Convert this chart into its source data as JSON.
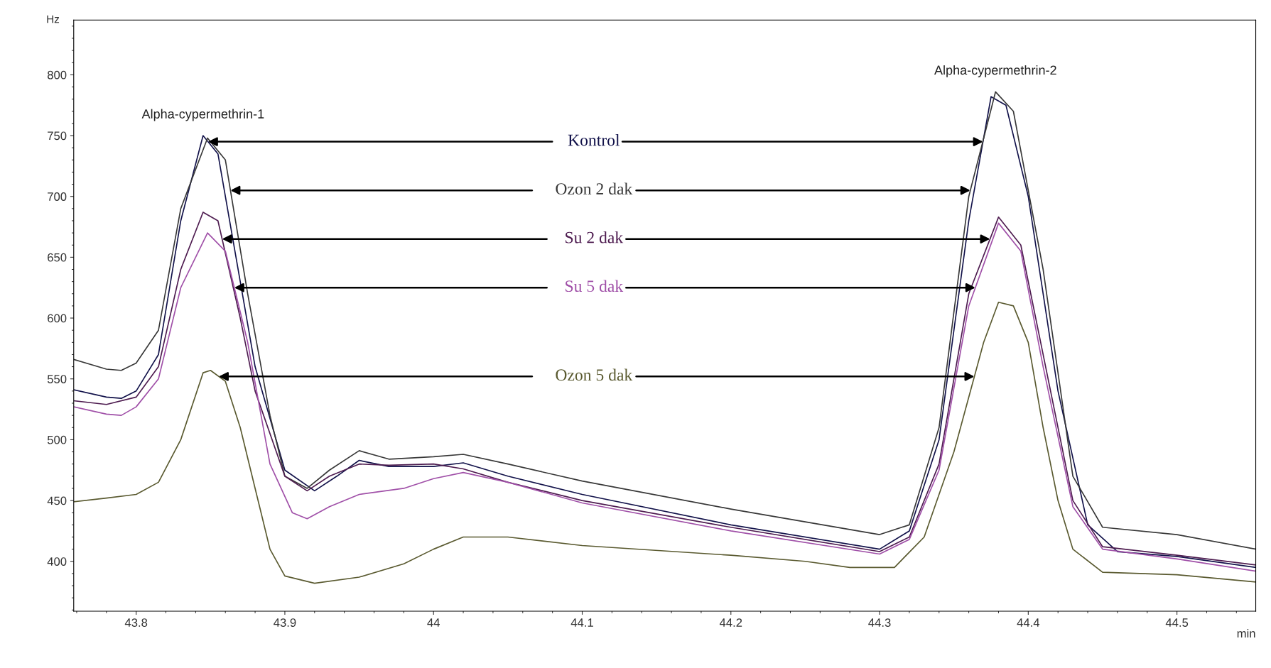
{
  "chart_data": {
    "type": "line",
    "xlabel": "min",
    "ylabel": "Hz",
    "xlim": [
      43.758,
      44.553
    ],
    "xticks": [
      43.8,
      43.9,
      44,
      44.1,
      44.2,
      44.3,
      44.4,
      44.5
    ],
    "ylim": [
      359,
      845
    ],
    "yticks": [
      400,
      450,
      500,
      550,
      600,
      650,
      700,
      750,
      800
    ],
    "grid": false,
    "legend": false,
    "marker": "none",
    "line_style": "solid",
    "series": [
      {
        "name": "Kontrol",
        "color": "#12124a",
        "x": [
          43.758,
          43.78,
          43.79,
          43.8,
          43.815,
          43.83,
          43.845,
          43.855,
          43.87,
          43.88,
          43.9,
          43.92,
          43.935,
          43.95,
          43.97,
          44.0,
          44.02,
          44.05,
          44.1,
          44.2,
          44.3,
          44.32,
          44.34,
          44.36,
          44.375,
          44.385,
          44.4,
          44.42,
          44.44,
          44.46,
          44.5,
          44.553
        ],
        "values": [
          541,
          535,
          534,
          540,
          570,
          680,
          750,
          735,
          630,
          560,
          475,
          458,
          470,
          483,
          478,
          478,
          481,
          470,
          455,
          430,
          410,
          425,
          500,
          680,
          782,
          775,
          700,
          540,
          430,
          408,
          404,
          395
        ]
      },
      {
        "name": "Ozon 2 dak",
        "color": "#383838",
        "x": [
          43.758,
          43.78,
          43.79,
          43.8,
          43.815,
          43.83,
          43.848,
          43.86,
          43.875,
          43.89,
          43.9,
          43.915,
          43.93,
          43.95,
          43.97,
          44.0,
          44.02,
          44.05,
          44.1,
          44.2,
          44.3,
          44.32,
          44.34,
          44.36,
          44.378,
          44.39,
          44.41,
          44.43,
          44.45,
          44.5,
          44.553
        ],
        "values": [
          566,
          558,
          557,
          563,
          590,
          690,
          748,
          730,
          620,
          520,
          470,
          460,
          475,
          491,
          484,
          486,
          488,
          480,
          466,
          443,
          422,
          430,
          510,
          700,
          786,
          770,
          640,
          470,
          428,
          422,
          410
        ]
      },
      {
        "name": "Su 2 dak",
        "color": "#4e1c50",
        "x": [
          43.758,
          43.78,
          43.8,
          43.815,
          43.83,
          43.845,
          43.855,
          43.87,
          43.88,
          43.9,
          43.915,
          43.93,
          43.95,
          43.97,
          44.0,
          44.02,
          44.05,
          44.1,
          44.2,
          44.3,
          44.32,
          44.34,
          44.36,
          44.38,
          44.395,
          44.41,
          44.43,
          44.45,
          44.5,
          44.553
        ],
        "values": [
          532,
          529,
          535,
          560,
          640,
          687,
          680,
          600,
          540,
          470,
          458,
          470,
          480,
          479,
          480,
          476,
          465,
          450,
          428,
          408,
          420,
          480,
          620,
          683,
          660,
          570,
          450,
          412,
          405,
          397
        ]
      },
      {
        "name": "Su 5 dak",
        "color": "#a050a8",
        "x": [
          43.758,
          43.78,
          43.79,
          43.8,
          43.815,
          43.83,
          43.848,
          43.86,
          43.875,
          43.89,
          43.905,
          43.915,
          43.93,
          43.95,
          43.98,
          44.0,
          44.02,
          44.05,
          44.1,
          44.2,
          44.3,
          44.32,
          44.34,
          44.36,
          44.38,
          44.395,
          44.41,
          44.43,
          44.45,
          44.5,
          44.553
        ],
        "values": [
          527,
          521,
          520,
          527,
          550,
          625,
          670,
          655,
          580,
          480,
          440,
          435,
          445,
          455,
          460,
          468,
          473,
          465,
          448,
          425,
          406,
          418,
          475,
          610,
          678,
          655,
          560,
          445,
          410,
          402,
          392
        ]
      },
      {
        "name": "Ozon 5 dak",
        "color": "#5a5a30",
        "x": [
          43.758,
          43.78,
          43.8,
          43.815,
          43.83,
          43.845,
          43.85,
          43.86,
          43.87,
          43.88,
          43.89,
          43.9,
          43.92,
          43.95,
          43.98,
          44.0,
          44.02,
          44.05,
          44.1,
          44.2,
          44.25,
          44.28,
          44.31,
          44.33,
          44.35,
          44.37,
          44.38,
          44.39,
          44.4,
          44.41,
          44.42,
          44.43,
          44.45,
          44.5,
          44.553
        ],
        "values": [
          449,
          452,
          455,
          465,
          500,
          555,
          557,
          548,
          510,
          460,
          410,
          388,
          382,
          387,
          398,
          410,
          420,
          420,
          413,
          405,
          400,
          395,
          395,
          420,
          490,
          580,
          613,
          610,
          580,
          510,
          450,
          410,
          391,
          389,
          383
        ]
      }
    ],
    "annotations": [
      "Alpha-cypermethrin-1",
      "Alpha-cypermethrin-2"
    ]
  }
}
